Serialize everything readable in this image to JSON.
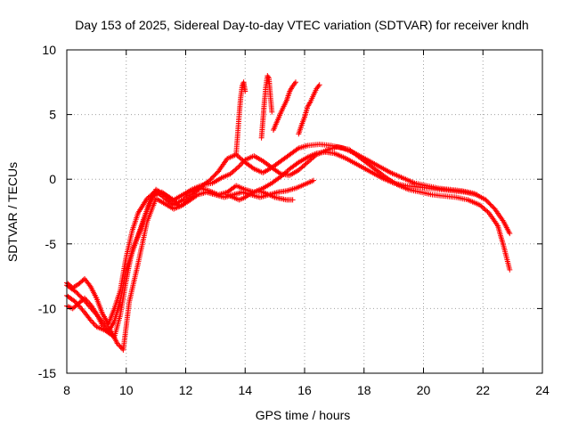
{
  "chart_data": {
    "type": "scatter",
    "title": "Day 153 of 2025, Sidereal Day-to-day VTEC variation (SDTVAR) for receiver kndh",
    "xlabel": "GPS time / hours",
    "ylabel": "SDTVAR / TECUs",
    "xlim": [
      8,
      24
    ],
    "ylim": [
      -15,
      10
    ],
    "xticks": [
      8,
      10,
      12,
      14,
      16,
      18,
      20,
      22,
      24
    ],
    "yticks": [
      -15,
      -10,
      -5,
      0,
      5,
      10
    ],
    "grid": true,
    "marker": "+",
    "color": "#ff0000",
    "series": [
      {
        "name": "track-a",
        "x": [
          8.0,
          8.3,
          8.6,
          8.8,
          9.0,
          9.3,
          9.6,
          9.8,
          10.0,
          10.2,
          10.5,
          10.8,
          11.0,
          11.3,
          11.6,
          11.9,
          12.2,
          12.5,
          12.9,
          13.2,
          13.5,
          13.8,
          14.0,
          14.3,
          14.6,
          14.9,
          15.2,
          15.5,
          15.8,
          16.1,
          16.4,
          16.8,
          17.1,
          17.5,
          17.9,
          18.3,
          18.7,
          19.1,
          19.5,
          19.9,
          20.3,
          20.7,
          21.1,
          21.5,
          21.9,
          22.2,
          22.5,
          22.7,
          22.9
        ],
        "y": [
          -9.0,
          -9.5,
          -10.3,
          -10.9,
          -11.4,
          -11.7,
          -12.2,
          -10.5,
          -7.8,
          -5.5,
          -3.8,
          -1.6,
          -0.8,
          -1.2,
          -1.6,
          -1.2,
          -0.8,
          -0.5,
          -0.3,
          0.1,
          0.4,
          1.0,
          1.5,
          1.8,
          1.4,
          0.9,
          0.4,
          0.3,
          0.7,
          1.3,
          1.9,
          2.3,
          2.5,
          2.3,
          1.6,
          0.9,
          0.2,
          -0.4,
          -0.8,
          -1.0,
          -1.2,
          -1.3,
          -1.4,
          -1.6,
          -2.0,
          -2.6,
          -3.6,
          -5.2,
          -7.0
        ]
      },
      {
        "name": "track-b",
        "x": [
          8.0,
          8.3,
          8.6,
          8.9,
          9.2,
          9.5,
          9.7,
          9.9,
          10.1,
          10.4,
          10.7,
          11.0,
          11.3,
          11.6,
          11.9,
          12.2,
          12.5,
          12.8,
          13.1,
          13.4,
          13.7,
          14.0,
          14.3,
          14.6,
          14.9,
          15.2,
          15.5,
          15.8,
          16.1,
          16.5,
          16.9,
          17.3,
          17.7,
          18.1,
          18.5,
          18.9,
          19.3,
          19.7,
          20.1,
          20.5,
          20.9,
          21.3,
          21.7,
          22.1,
          22.4,
          22.7,
          22.9
        ],
        "y": [
          -8.2,
          -8.7,
          -9.4,
          -10.2,
          -11.0,
          -11.8,
          -12.7,
          -13.2,
          -9.5,
          -6.5,
          -3.3,
          -1.5,
          -1.9,
          -2.3,
          -2.0,
          -1.3,
          -0.6,
          -0.1,
          0.6,
          1.6,
          1.9,
          1.3,
          0.8,
          0.5,
          0.9,
          1.4,
          1.9,
          2.4,
          2.6,
          2.7,
          2.6,
          2.4,
          2.0,
          1.5,
          1.0,
          0.5,
          0.1,
          -0.3,
          -0.5,
          -0.7,
          -0.8,
          -0.9,
          -1.1,
          -1.6,
          -2.3,
          -3.3,
          -4.2
        ]
      },
      {
        "name": "track-c",
        "x": [
          8.0,
          8.2,
          8.4,
          8.6,
          8.8,
          9.0,
          9.2,
          9.4,
          9.6,
          9.8,
          10.0,
          10.2,
          10.4,
          10.7,
          11.0,
          11.3,
          11.6,
          11.9,
          12.2,
          12.5,
          12.8,
          13.1,
          13.4,
          13.7,
          14.0,
          14.3,
          14.6,
          14.9,
          15.2,
          15.5,
          15.8,
          16.1,
          16.4,
          16.7,
          17.0,
          17.4,
          17.8,
          18.2,
          18.6,
          19.0,
          19.4,
          19.8,
          20.2,
          20.6,
          21.0,
          21.4,
          21.8
        ],
        "y": [
          -8.0,
          -8.4,
          -8.1,
          -7.7,
          -8.3,
          -9.2,
          -10.4,
          -11.2,
          -10.0,
          -8.6,
          -6.0,
          -4.0,
          -2.6,
          -1.5,
          -0.9,
          -1.5,
          -2.0,
          -1.6,
          -1.0,
          -0.7,
          -0.9,
          -1.2,
          -1.0,
          -0.5,
          -0.8,
          -1.0,
          -0.7,
          -0.3,
          0.2,
          0.8,
          1.3,
          1.7,
          2.0,
          2.1,
          2.0,
          1.6,
          1.1,
          0.6,
          0.1,
          -0.3,
          -0.5,
          -0.6,
          -0.7,
          -0.8,
          -0.9,
          -1.0,
          -1.2
        ]
      },
      {
        "name": "track-d",
        "x": [
          8.0,
          8.2,
          8.4,
          8.6,
          8.8,
          9.0,
          9.2,
          9.4,
          9.6,
          9.8,
          10.0,
          10.3,
          10.6,
          10.9,
          11.2,
          11.5,
          11.8,
          12.1,
          12.4,
          12.7,
          13.0,
          13.3,
          13.6,
          13.9,
          14.2,
          14.5,
          14.8,
          15.1,
          15.4,
          15.7,
          16.0,
          16.3
        ],
        "y": [
          -9.8,
          -10.0,
          -9.6,
          -9.2,
          -9.7,
          -10.4,
          -11.3,
          -11.8,
          -11.0,
          -9.4,
          -7.0,
          -5.0,
          -3.0,
          -1.3,
          -1.0,
          -1.5,
          -2.1,
          -1.7,
          -1.2,
          -1.0,
          -1.2,
          -1.4,
          -1.2,
          -1.0,
          -1.2,
          -1.4,
          -1.2,
          -1.0,
          -0.9,
          -0.7,
          -0.4,
          -0.1
        ]
      },
      {
        "name": "track-e",
        "x": [
          13.4,
          13.6,
          13.8,
          14.0,
          14.2,
          14.4,
          14.6,
          14.8,
          15.0,
          15.2,
          15.4,
          15.6
        ],
        "y": [
          -1.2,
          -1.4,
          -1.6,
          -1.4,
          -1.1,
          -0.9,
          -1.0,
          -1.2,
          -1.4,
          -1.5,
          -1.6,
          -1.6
        ]
      },
      {
        "name": "spike-1",
        "x": [
          13.7,
          13.75,
          13.8,
          13.85,
          13.9,
          13.95,
          14.0
        ],
        "y": [
          2.0,
          3.5,
          5.0,
          6.3,
          7.2,
          7.5,
          6.8
        ]
      },
      {
        "name": "spike-2",
        "x": [
          14.55,
          14.6,
          14.65,
          14.7,
          14.75,
          14.8,
          14.85,
          14.9
        ],
        "y": [
          3.2,
          4.6,
          6.0,
          7.2,
          8.0,
          7.8,
          6.4,
          5.2
        ]
      },
      {
        "name": "spike-3",
        "x": [
          14.95,
          15.1,
          15.25,
          15.4,
          15.5,
          15.6,
          15.7
        ],
        "y": [
          3.8,
          4.6,
          5.4,
          6.1,
          6.8,
          7.2,
          7.5
        ]
      },
      {
        "name": "spike-4",
        "x": [
          15.8,
          15.9,
          16.0,
          16.1,
          16.2,
          16.3,
          16.4,
          16.5
        ],
        "y": [
          3.5,
          4.2,
          4.8,
          5.6,
          6.0,
          6.5,
          7.0,
          7.3
        ]
      }
    ]
  }
}
